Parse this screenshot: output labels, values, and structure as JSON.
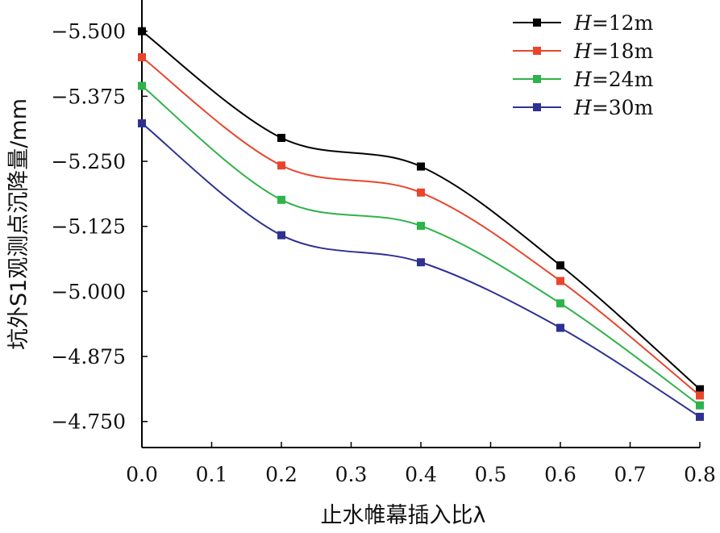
{
  "chart_data": {
    "type": "line",
    "xlabel": "止水帷幕插入比λ",
    "ylabel": "坑外S1观测点沉降量/mm",
    "x": [
      0.0,
      0.2,
      0.4,
      0.6,
      0.8
    ],
    "xlim": [
      0.0,
      0.8
    ],
    "ylim": [
      -4.7,
      -5.56
    ],
    "y_axis_reversed": true,
    "x_ticks": [
      "0.0",
      "0.1",
      "0.2",
      "0.3",
      "0.4",
      "0.5",
      "0.6",
      "0.7",
      "0.8"
    ],
    "y_ticks": [
      "-5.500",
      "-5.375",
      "-5.250",
      "-5.125",
      "-5.000",
      "-4.875",
      "-4.750"
    ],
    "grid": false,
    "smooth": true,
    "legend_position": "top-right",
    "series": [
      {
        "name_italic": "H",
        "name_rest": "=12m",
        "color": "#000000",
        "values": [
          -5.5,
          -5.295,
          -5.24,
          -5.05,
          -4.812
        ]
      },
      {
        "name_italic": "H",
        "name_rest": "=18m",
        "color": "#e8452c",
        "values": [
          -5.45,
          -5.242,
          -5.19,
          -5.02,
          -4.8
        ]
      },
      {
        "name_italic": "H",
        "name_rest": "=24m",
        "color": "#2db34a",
        "values": [
          -5.395,
          -5.176,
          -5.126,
          -4.977,
          -4.781
        ]
      },
      {
        "name_italic": "H",
        "name_rest": "=30m",
        "color": "#2e3192",
        "values": [
          -5.323,
          -5.108,
          -5.056,
          -4.93,
          -4.759
        ]
      }
    ]
  }
}
